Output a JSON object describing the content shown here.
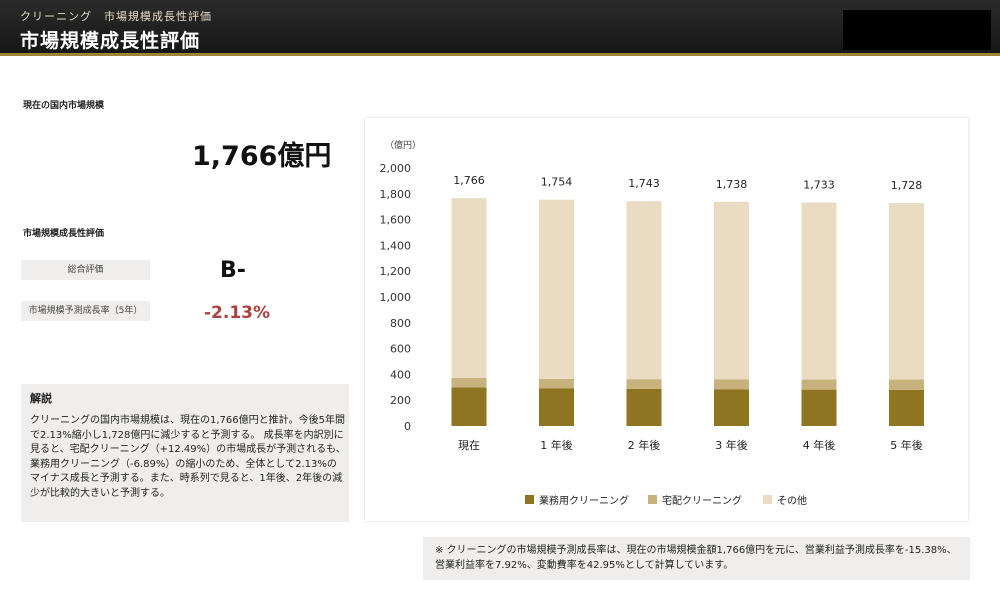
{
  "header": {
    "breadcrumb": "クリーニング　市場規模成長性評価",
    "title": "市場規模成長性評価"
  },
  "market": {
    "label": "現在の国内市場規模",
    "value": "1,766億円"
  },
  "evaluation": {
    "label": "市場規模成長性評価",
    "overall_label": "総合評価",
    "overall_value": "B-",
    "rate_label": "市場規模予測成長率（5年）",
    "rate_value": "-2.13%"
  },
  "explanation": {
    "heading": "解説",
    "body": "クリーニングの国内市場規模は、現在の1,766億円と推計。今後5年間で2.13%縮小し1,728億円に減少すると予測する。\n成長率を内訳別に見ると、宅配クリーニング（+12.49%）の市場成長が予測されるも、業務用クリーニング（-6.89%）の縮小のため、全体として2.13%のマイナス成長と予測する。また、時系列で見ると、1年後、2年後の減少が比較的大きいと予測する。"
  },
  "note": "※ クリーニングの市場規模予測成長率は、現在の市場規模金額1,766億円を元に、営業利益予測成長率を-15.38%、営業利益率を7.92%、変動費率を42.95%として計算しています。",
  "colors": {
    "business": "#8f7521",
    "delivery": "#c7b17d",
    "other": "#e9dcc2",
    "negative": "#b03f3f",
    "accent": "#a0812e"
  },
  "chart_data": {
    "type": "bar",
    "stacked": true,
    "unit_label": "（億円）",
    "categories": [
      "現在",
      "1 年後",
      "2 年後",
      "3 年後",
      "4 年後",
      "5 年後"
    ],
    "totals": [
      "1,766",
      "1,754",
      "1,743",
      "1,738",
      "1,733",
      "1,728"
    ],
    "series": [
      {
        "name": "業務用クリーニング",
        "values": [
          300,
          293,
          288,
          285,
          282,
          280
        ]
      },
      {
        "name": "宅配クリーニング",
        "values": [
          72,
          73,
          75,
          76,
          78,
          80
        ]
      },
      {
        "name": "その他",
        "values": [
          1394,
          1388,
          1380,
          1377,
          1373,
          1368
        ]
      }
    ],
    "ylim": [
      0,
      2000
    ],
    "yticks": [
      "0",
      "200",
      "400",
      "600",
      "800",
      "1,000",
      "1,200",
      "1,400",
      "1,600",
      "1,800",
      "2,000"
    ],
    "legend_position": "bottom",
    "grid": false
  }
}
